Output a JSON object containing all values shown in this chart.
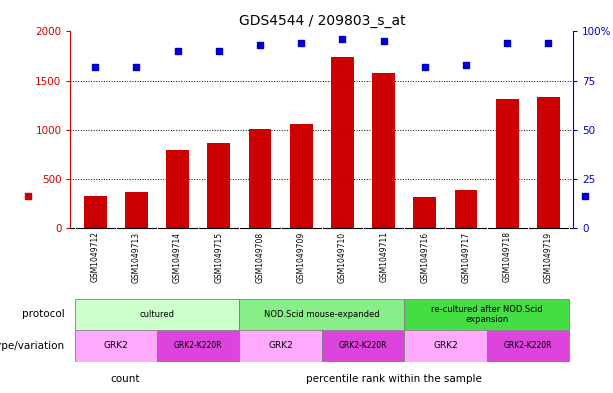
{
  "title": "GDS4544 / 209803_s_at",
  "samples": [
    "GSM1049712",
    "GSM1049713",
    "GSM1049714",
    "GSM1049715",
    "GSM1049708",
    "GSM1049709",
    "GSM1049710",
    "GSM1049711",
    "GSM1049716",
    "GSM1049717",
    "GSM1049718",
    "GSM1049719"
  ],
  "counts": [
    330,
    370,
    790,
    860,
    1005,
    1060,
    1740,
    1580,
    310,
    385,
    1310,
    1330
  ],
  "percentile_ranks": [
    82,
    82,
    90,
    90,
    93,
    94,
    96,
    95,
    82,
    83,
    94,
    94
  ],
  "bar_color": "#cc0000",
  "dot_color": "#0000cc",
  "ylim_left": [
    0,
    2000
  ],
  "ylim_right": [
    0,
    100
  ],
  "yticks_left": [
    0,
    500,
    1000,
    1500,
    2000
  ],
  "ytick_labels_left": [
    "0",
    "500",
    "1000",
    "1500",
    "2000"
  ],
  "yticks_right": [
    0,
    25,
    50,
    75,
    100
  ],
  "ytick_labels_right": [
    "0",
    "25",
    "50",
    "75",
    "100%"
  ],
  "grid_values": [
    500,
    1000,
    1500
  ],
  "protocol_groups": [
    {
      "text": "cultured",
      "start": 0,
      "end": 3,
      "color": "#ccffcc"
    },
    {
      "text": "NOD.Scid mouse-expanded",
      "start": 4,
      "end": 7,
      "color": "#88ee88"
    },
    {
      "text": "re-cultured after NOD.Scid\nexpansion",
      "start": 8,
      "end": 11,
      "color": "#44dd44"
    }
  ],
  "genotype_groups": [
    {
      "text": "GRK2",
      "start": 0,
      "end": 1,
      "color": "#ffaaff"
    },
    {
      "text": "GRK2-K220R",
      "start": 2,
      "end": 3,
      "color": "#dd44dd"
    },
    {
      "text": "GRK2",
      "start": 4,
      "end": 5,
      "color": "#ffaaff"
    },
    {
      "text": "GRK2-K220R",
      "start": 6,
      "end": 7,
      "color": "#dd44dd"
    },
    {
      "text": "GRK2",
      "start": 8,
      "end": 9,
      "color": "#ffaaff"
    },
    {
      "text": "GRK2-K220R",
      "start": 10,
      "end": 11,
      "color": "#dd44dd"
    }
  ],
  "protocol_label": "protocol",
  "genotype_label": "genotype/variation",
  "legend_items": [
    {
      "label": "count",
      "color": "#cc0000"
    },
    {
      "label": "percentile rank within the sample",
      "color": "#0000cc"
    }
  ],
  "tick_label_color_left": "#cc0000",
  "tick_label_color_right": "#0000cc",
  "bar_width": 0.55,
  "xtick_area_color": "#dddddd"
}
